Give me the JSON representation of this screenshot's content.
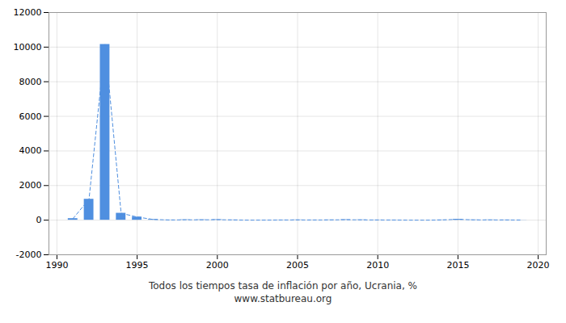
{
  "chart_data": {
    "type": "bar",
    "title": "Todos los tiempos tasa de inflación por año, Ucrania, %",
    "subtitle": "www.statbureau.org",
    "x": [
      1991,
      1992,
      1993,
      1994,
      1995,
      1996,
      1997,
      1998,
      1999,
      2000,
      2001,
      2002,
      2003,
      2004,
      2005,
      2006,
      2007,
      2008,
      2009,
      2010,
      2011,
      2012,
      2013,
      2014,
      2015,
      2016,
      2017,
      2018,
      2019
    ],
    "values": [
      91,
      1210,
      10155,
      401,
      182,
      40,
      10,
      20,
      19,
      28,
      12,
      1,
      5,
      9,
      14,
      9,
      13,
      25,
      16,
      10,
      8,
      1,
      -1,
      12,
      49,
      14,
      14,
      11,
      7
    ],
    "color": "#4f8fe0",
    "line_style": "dashed",
    "xlim": [
      1989.5,
      2020.5
    ],
    "xticks": [
      1990,
      1995,
      2000,
      2005,
      2010,
      2015,
      2020
    ],
    "ylim": [
      -2000,
      12000
    ],
    "yticks": [
      -2000,
      0,
      2000,
      4000,
      6000,
      8000,
      10000,
      12000
    ],
    "grid": true
  }
}
